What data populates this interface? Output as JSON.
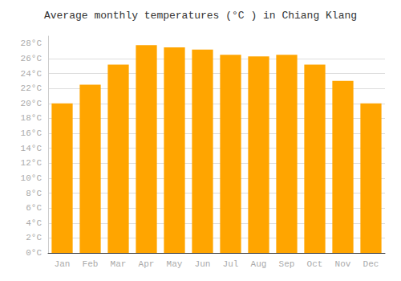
{
  "chart_data": {
    "type": "bar",
    "title": "Average monthly temperatures (°C ) in Chiang Klang",
    "categories": [
      "Jan",
      "Feb",
      "Mar",
      "Apr",
      "May",
      "Jun",
      "Jul",
      "Aug",
      "Sep",
      "Oct",
      "Nov",
      "Dec"
    ],
    "values": [
      20,
      22.5,
      25.2,
      27.8,
      27.5,
      27.2,
      26.5,
      26.3,
      26.5,
      25.2,
      23,
      20
    ],
    "color": "#FFA500",
    "ylim": [
      0,
      29
    ],
    "yticks": [
      {
        "value": 0,
        "label": "0°C"
      },
      {
        "value": 2,
        "label": "2°C"
      },
      {
        "value": 4,
        "label": "4°C"
      },
      {
        "value": 6,
        "label": "6°C"
      },
      {
        "value": 8,
        "label": "8°C"
      },
      {
        "value": 10,
        "label": "10°C"
      },
      {
        "value": 12,
        "label": "12°C"
      },
      {
        "value": 14,
        "label": "14°C"
      },
      {
        "value": 16,
        "label": "16°C"
      },
      {
        "value": 18,
        "label": "18°C"
      },
      {
        "value": 20,
        "label": "20°C"
      },
      {
        "value": 22,
        "label": "22°C"
      },
      {
        "value": 24,
        "label": "24°C"
      },
      {
        "value": 26,
        "label": "26°C"
      },
      {
        "value": 28,
        "label": "28°C"
      }
    ],
    "grid": true
  }
}
